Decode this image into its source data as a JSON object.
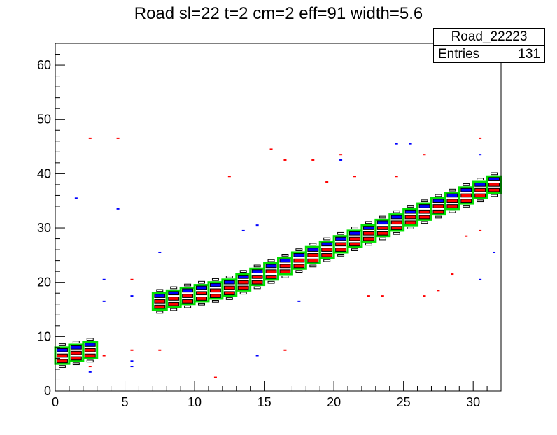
{
  "chart_data": {
    "type": "heatmap",
    "title": "Road sl=22 t=2 cm=2 eff=91 width=5.6",
    "xlabel": "",
    "ylabel": "",
    "xlim": [
      0,
      32
    ],
    "ylim": [
      0,
      64
    ],
    "x_ticks": [
      "0",
      "5",
      "10",
      "15",
      "20",
      "25",
      "30"
    ],
    "y_ticks": [
      "0",
      "10",
      "20",
      "30",
      "40",
      "50",
      "60"
    ],
    "stats_box": {
      "name": "Road_22223",
      "entries_label": "Entries",
      "entries_value": "131"
    },
    "colors": {
      "road": "#00e000",
      "red_hits": "#ff0000",
      "blue_hits": "#0000ff",
      "box": "#000000"
    },
    "road_track": [
      {
        "x": 0,
        "y": 6.5
      },
      {
        "x": 1,
        "y": 7
      },
      {
        "x": 2,
        "y": 7.5
      },
      {
        "x": 7,
        "y": 16.5
      },
      {
        "x": 8,
        "y": 17
      },
      {
        "x": 9,
        "y": 17.5
      },
      {
        "x": 10,
        "y": 18
      },
      {
        "x": 11,
        "y": 18.5
      },
      {
        "x": 12,
        "y": 19
      },
      {
        "x": 13,
        "y": 20
      },
      {
        "x": 14,
        "y": 21
      },
      {
        "x": 15,
        "y": 22
      },
      {
        "x": 16,
        "y": 23
      },
      {
        "x": 17,
        "y": 24
      },
      {
        "x": 18,
        "y": 25
      },
      {
        "x": 19,
        "y": 26
      },
      {
        "x": 20,
        "y": 27
      },
      {
        "x": 21,
        "y": 28
      },
      {
        "x": 22,
        "y": 29
      },
      {
        "x": 23,
        "y": 30
      },
      {
        "x": 24,
        "y": 31
      },
      {
        "x": 25,
        "y": 32
      },
      {
        "x": 26,
        "y": 33
      },
      {
        "x": 27,
        "y": 34
      },
      {
        "x": 28,
        "y": 35
      },
      {
        "x": 29,
        "y": 36
      },
      {
        "x": 30,
        "y": 37
      },
      {
        "x": 31,
        "y": 38
      }
    ],
    "scatter_red": [
      {
        "x": 2.5,
        "y": 46.5
      },
      {
        "x": 4.5,
        "y": 46.5
      },
      {
        "x": 5.5,
        "y": 20.5
      },
      {
        "x": 5.5,
        "y": 7.5
      },
      {
        "x": 7.5,
        "y": 7.5
      },
      {
        "x": 11.5,
        "y": 2.5
      },
      {
        "x": 12.5,
        "y": 39.5
      },
      {
        "x": 15.5,
        "y": 44.5
      },
      {
        "x": 16.5,
        "y": 42.5
      },
      {
        "x": 16.5,
        "y": 7.5
      },
      {
        "x": 18.5,
        "y": 42.5
      },
      {
        "x": 19.5,
        "y": 38.5
      },
      {
        "x": 20.5,
        "y": 43.5
      },
      {
        "x": 22.5,
        "y": 17.5
      },
      {
        "x": 23.5,
        "y": 17.5
      },
      {
        "x": 26.5,
        "y": 17.5
      },
      {
        "x": 27.5,
        "y": 18.5
      },
      {
        "x": 28.5,
        "y": 21.5
      },
      {
        "x": 29.5,
        "y": 28.5
      },
      {
        "x": 30.5,
        "y": 29.5
      },
      {
        "x": 30.5,
        "y": 46.5
      },
      {
        "x": 26.5,
        "y": 43.5
      },
      {
        "x": 24.5,
        "y": 39.5
      },
      {
        "x": 21.5,
        "y": 39.5
      },
      {
        "x": 3.5,
        "y": 6.5
      },
      {
        "x": 2.5,
        "y": 4.5
      }
    ],
    "scatter_blue": [
      {
        "x": 1.5,
        "y": 35.5
      },
      {
        "x": 3.5,
        "y": 20.5
      },
      {
        "x": 3.5,
        "y": 16.5
      },
      {
        "x": 4.5,
        "y": 33.5
      },
      {
        "x": 5.5,
        "y": 17.5
      },
      {
        "x": 5.5,
        "y": 5.5
      },
      {
        "x": 5.5,
        "y": 4.5
      },
      {
        "x": 7.5,
        "y": 25.5
      },
      {
        "x": 13.5,
        "y": 29.5
      },
      {
        "x": 14.5,
        "y": 30.5
      },
      {
        "x": 14.5,
        "y": 6.5
      },
      {
        "x": 17.5,
        "y": 16.5
      },
      {
        "x": 20.5,
        "y": 42.5
      },
      {
        "x": 24.5,
        "y": 45.5
      },
      {
        "x": 25.5,
        "y": 45.5
      },
      {
        "x": 30.5,
        "y": 20.5
      },
      {
        "x": 31.5,
        "y": 25.5
      },
      {
        "x": 30.5,
        "y": 43.5
      },
      {
        "x": 2.5,
        "y": 3.5
      }
    ]
  }
}
